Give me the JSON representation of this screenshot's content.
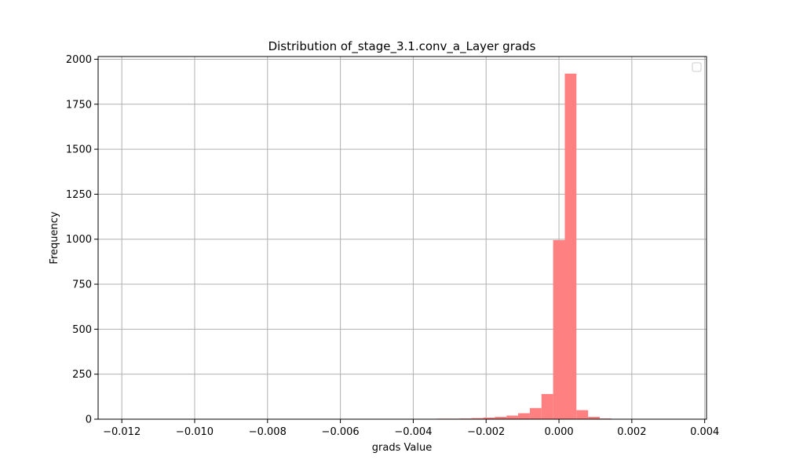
{
  "chart_data": {
    "type": "bar",
    "title": "Distribution of_stage_3.1.conv_a_Layer grads",
    "xlabel": "grads Value",
    "ylabel": "Frequency",
    "xlim": [
      -0.01265,
      0.00405
    ],
    "ylim": [
      0,
      2015
    ],
    "grid": true,
    "legend": "top-right",
    "bar_color": "#ff8080",
    "x_ticks": [
      {
        "value": -0.012,
        "label": "−0.012"
      },
      {
        "value": -0.01,
        "label": "−0.010"
      },
      {
        "value": -0.008,
        "label": "−0.008"
      },
      {
        "value": -0.006,
        "label": "−0.006"
      },
      {
        "value": -0.004,
        "label": "−0.004"
      },
      {
        "value": -0.002,
        "label": "−0.002"
      },
      {
        "value": 0.0,
        "label": "0.000"
      },
      {
        "value": 0.002,
        "label": "0.002"
      },
      {
        "value": 0.004,
        "label": "0.004"
      }
    ],
    "y_ticks": [
      {
        "value": 0,
        "label": "0"
      },
      {
        "value": 250,
        "label": "250"
      },
      {
        "value": 500,
        "label": "500"
      },
      {
        "value": 750,
        "label": "750"
      },
      {
        "value": 1000,
        "label": "1000"
      },
      {
        "value": 1250,
        "label": "1250"
      },
      {
        "value": 1500,
        "label": "1500"
      },
      {
        "value": 1750,
        "label": "1750"
      },
      {
        "value": 2000,
        "label": "2000"
      }
    ],
    "bin_width": 0.00032,
    "bins": [
      {
        "x0": -0.00368,
        "count": 2
      },
      {
        "x0": -0.00336,
        "count": 3
      },
      {
        "x0": -0.00304,
        "count": 3
      },
      {
        "x0": -0.00272,
        "count": 4
      },
      {
        "x0": -0.0024,
        "count": 6
      },
      {
        "x0": -0.00208,
        "count": 9
      },
      {
        "x0": -0.00176,
        "count": 13
      },
      {
        "x0": -0.00144,
        "count": 20
      },
      {
        "x0": -0.00112,
        "count": 33
      },
      {
        "x0": -0.0008,
        "count": 62
      },
      {
        "x0": -0.00048,
        "count": 140
      },
      {
        "x0": -0.00016,
        "count": 995
      },
      {
        "x0": 0.00016,
        "count": 1920
      },
      {
        "x0": 0.00048,
        "count": 50
      },
      {
        "x0": 0.0008,
        "count": 13
      },
      {
        "x0": 0.00112,
        "count": 4
      },
      {
        "x0": 0.00144,
        "count": 2
      }
    ]
  }
}
